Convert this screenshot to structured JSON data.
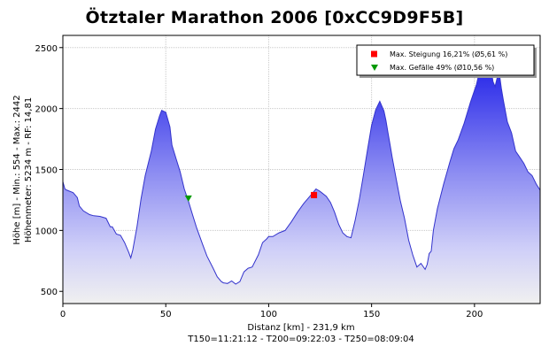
{
  "chart_data": {
    "type": "area",
    "title": "Ötztaler Marathon 2006 [0xCC9D9F5B]",
    "xlabel": "Distanz [km] - 231,9 km",
    "footer": "T150=11:21:12 - T200=09:22:03 - T250=08:09:04",
    "ylabel": [
      "Höhe [m] - Min.: 554 - Max.: 2442",
      "Höhenmeter: 5234 m - RF: 14,81"
    ],
    "xlim": [
      0,
      231.9
    ],
    "ylim": [
      400,
      2600
    ],
    "xticks": [
      0,
      50,
      100,
      150,
      200
    ],
    "yticks": [
      500,
      1000,
      1500,
      2000,
      2500
    ],
    "grid": true,
    "legend_position": "top-right",
    "legend": [
      {
        "label": "Max. Steigung 16,21% (Ø5,61 %)",
        "marker": "square",
        "color": "#ff0000"
      },
      {
        "label": "Max. Gefälle 49% (Ø10,56 %)",
        "marker": "triangle-down",
        "color": "#009900"
      }
    ],
    "markers": [
      {
        "name": "max-steigung",
        "x": 122,
        "y": 1290,
        "shape": "square",
        "color": "#ff0000"
      },
      {
        "name": "max-gefaelle",
        "x": 61,
        "y": 1265,
        "shape": "triangle-down",
        "color": "#009900"
      }
    ],
    "series": [
      {
        "x": [
          0,
          1,
          2,
          5,
          7,
          8,
          10,
          13,
          15,
          18,
          21,
          23,
          24,
          26,
          28,
          30,
          32,
          33,
          34,
          36,
          38,
          40,
          43,
          45,
          47,
          48,
          50,
          52,
          53,
          55,
          57,
          59,
          61,
          63,
          65,
          68,
          70,
          73,
          75,
          77,
          78,
          80,
          82,
          84,
          86,
          88,
          90,
          92,
          95,
          97,
          99,
          100,
          102,
          105,
          108,
          111,
          114,
          117,
          120,
          123,
          125,
          128,
          130,
          132,
          134,
          136,
          138,
          140,
          142,
          144,
          146,
          148,
          150,
          152,
          154,
          156,
          157,
          158,
          159,
          160,
          162,
          164,
          166,
          168,
          170,
          172,
          174,
          176,
          177,
          178,
          179,
          180,
          182,
          185,
          188,
          190,
          192,
          195,
          198,
          201,
          203,
          205,
          206,
          207,
          208,
          209,
          210,
          211,
          212,
          213,
          214,
          215,
          216,
          218,
          220,
          222,
          224,
          226,
          228,
          230,
          231.9
        ],
        "y": [
          1400,
          1340,
          1330,
          1310,
          1270,
          1200,
          1160,
          1130,
          1120,
          1115,
          1100,
          1030,
          1030,
          970,
          960,
          900,
          820,
          775,
          840,
          1030,
          1260,
          1450,
          1650,
          1830,
          1940,
          1985,
          1970,
          1850,
          1700,
          1590,
          1480,
          1340,
          1240,
          1130,
          1020,
          880,
          790,
          690,
          620,
          580,
          570,
          565,
          585,
          560,
          580,
          660,
          690,
          700,
          800,
          900,
          930,
          950,
          950,
          980,
          1000,
          1070,
          1150,
          1220,
          1280,
          1340,
          1320,
          1280,
          1230,
          1150,
          1050,
          980,
          950,
          940,
          1080,
          1250,
          1450,
          1660,
          1860,
          1990,
          2060,
          1980,
          1900,
          1800,
          1700,
          1600,
          1420,
          1240,
          1100,
          920,
          800,
          700,
          730,
          680,
          720,
          810,
          830,
          1000,
          1180,
          1380,
          1560,
          1670,
          1740,
          1880,
          2050,
          2200,
          2350,
          2420,
          2430,
          2440,
          2330,
          2220,
          2180,
          2250,
          2300,
          2170,
          2070,
          1980,
          1890,
          1800,
          1650,
          1600,
          1550,
          1480,
          1450,
          1380,
          1330
        ]
      }
    ]
  }
}
